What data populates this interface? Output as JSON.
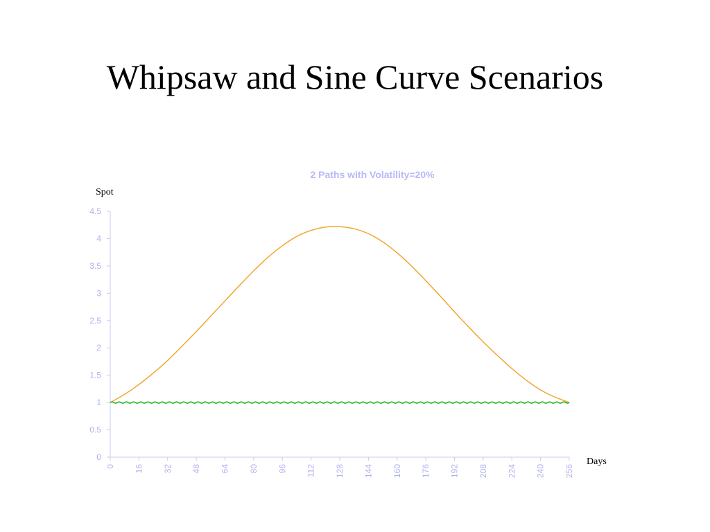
{
  "slide": {
    "title": "Whipsaw and Sine Curve Scenarios"
  },
  "colors": {
    "axis": "#c8c8f0",
    "tick_text": "#b0b0f0",
    "chart_title": "#b8b8f8",
    "sine_series": "#f0a830",
    "whipsaw_series": "#10b010"
  },
  "chart_data": {
    "type": "line",
    "title": "2 Paths with Volatility=20%",
    "xlabel": "Days",
    "ylabel": "Spot",
    "xlim": [
      0,
      256
    ],
    "ylim": [
      0,
      4.5
    ],
    "x_ticks": [
      "0",
      "16",
      "32",
      "48",
      "64",
      "80",
      "96",
      "112",
      "128",
      "144",
      "160",
      "176",
      "192",
      "208",
      "224",
      "240",
      "256"
    ],
    "y_ticks": [
      "0",
      "0.5",
      "1",
      "1.5",
      "2",
      "2.5",
      "3",
      "3.5",
      "4",
      "4.5"
    ],
    "grid": false,
    "legend": "none",
    "series": [
      {
        "x": [
          0,
          8,
          16,
          24,
          32,
          40,
          48,
          56,
          64,
          72,
          80,
          88,
          96,
          104,
          112,
          120,
          128,
          136,
          144,
          152,
          160,
          168,
          176,
          184,
          192,
          200,
          208,
          216,
          224,
          232,
          240,
          248,
          256
        ],
        "y": [
          1.0,
          1.15,
          1.33,
          1.54,
          1.77,
          2.03,
          2.3,
          2.58,
          2.86,
          3.14,
          3.41,
          3.66,
          3.87,
          4.04,
          4.15,
          4.21,
          4.22,
          4.18,
          4.09,
          3.94,
          3.74,
          3.5,
          3.23,
          2.95,
          2.66,
          2.38,
          2.11,
          1.86,
          1.62,
          1.41,
          1.23,
          1.1,
          1.0
        ]
      },
      {
        "x": [
          0,
          256
        ],
        "y": [
          1.0,
          1.0
        ],
        "oscillation_period_days": 4,
        "oscillation_amplitude": 0.012
      }
    ]
  }
}
